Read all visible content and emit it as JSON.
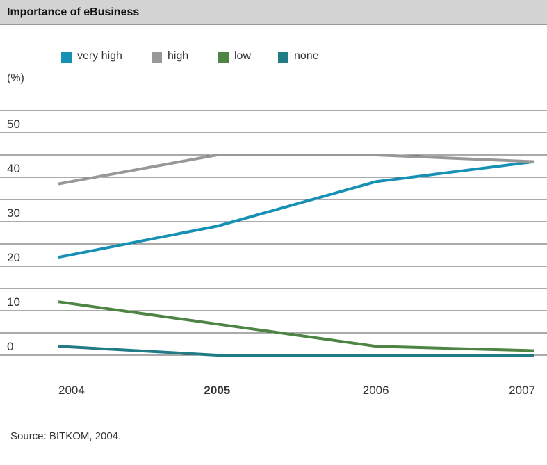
{
  "title": "Importance of eBusiness",
  "unit_label": "(%)",
  "source": "Source: BITKOM, 2004.",
  "legend": [
    {
      "label": "very high",
      "color": "#1690b4"
    },
    {
      "label": "high",
      "color": "#989898"
    },
    {
      "label": "low",
      "color": "#4e8544"
    },
    {
      "label": "none",
      "color": "#227c86"
    }
  ],
  "chart_data": {
    "type": "line",
    "title": "Importance of eBusiness",
    "ylabel": "(%)",
    "xlabel": "",
    "categories": [
      "2004",
      "2005",
      "2006",
      "2007"
    ],
    "highlighted_category": "2005",
    "ylim": [
      0,
      50
    ],
    "yticks": [
      0,
      10,
      20,
      30,
      40,
      50
    ],
    "grid": true,
    "legend_position": "top",
    "series": [
      {
        "name": "very high",
        "color": "#1690b4",
        "values": [
          22,
          29,
          39,
          43.5
        ]
      },
      {
        "name": "high",
        "color": "#989898",
        "values": [
          38.5,
          45,
          45,
          43.5
        ]
      },
      {
        "name": "low",
        "color": "#4e8544",
        "values": [
          12,
          7,
          2,
          1
        ]
      },
      {
        "name": "none",
        "color": "#227c86",
        "values": [
          2,
          0,
          0,
          0
        ]
      }
    ]
  }
}
